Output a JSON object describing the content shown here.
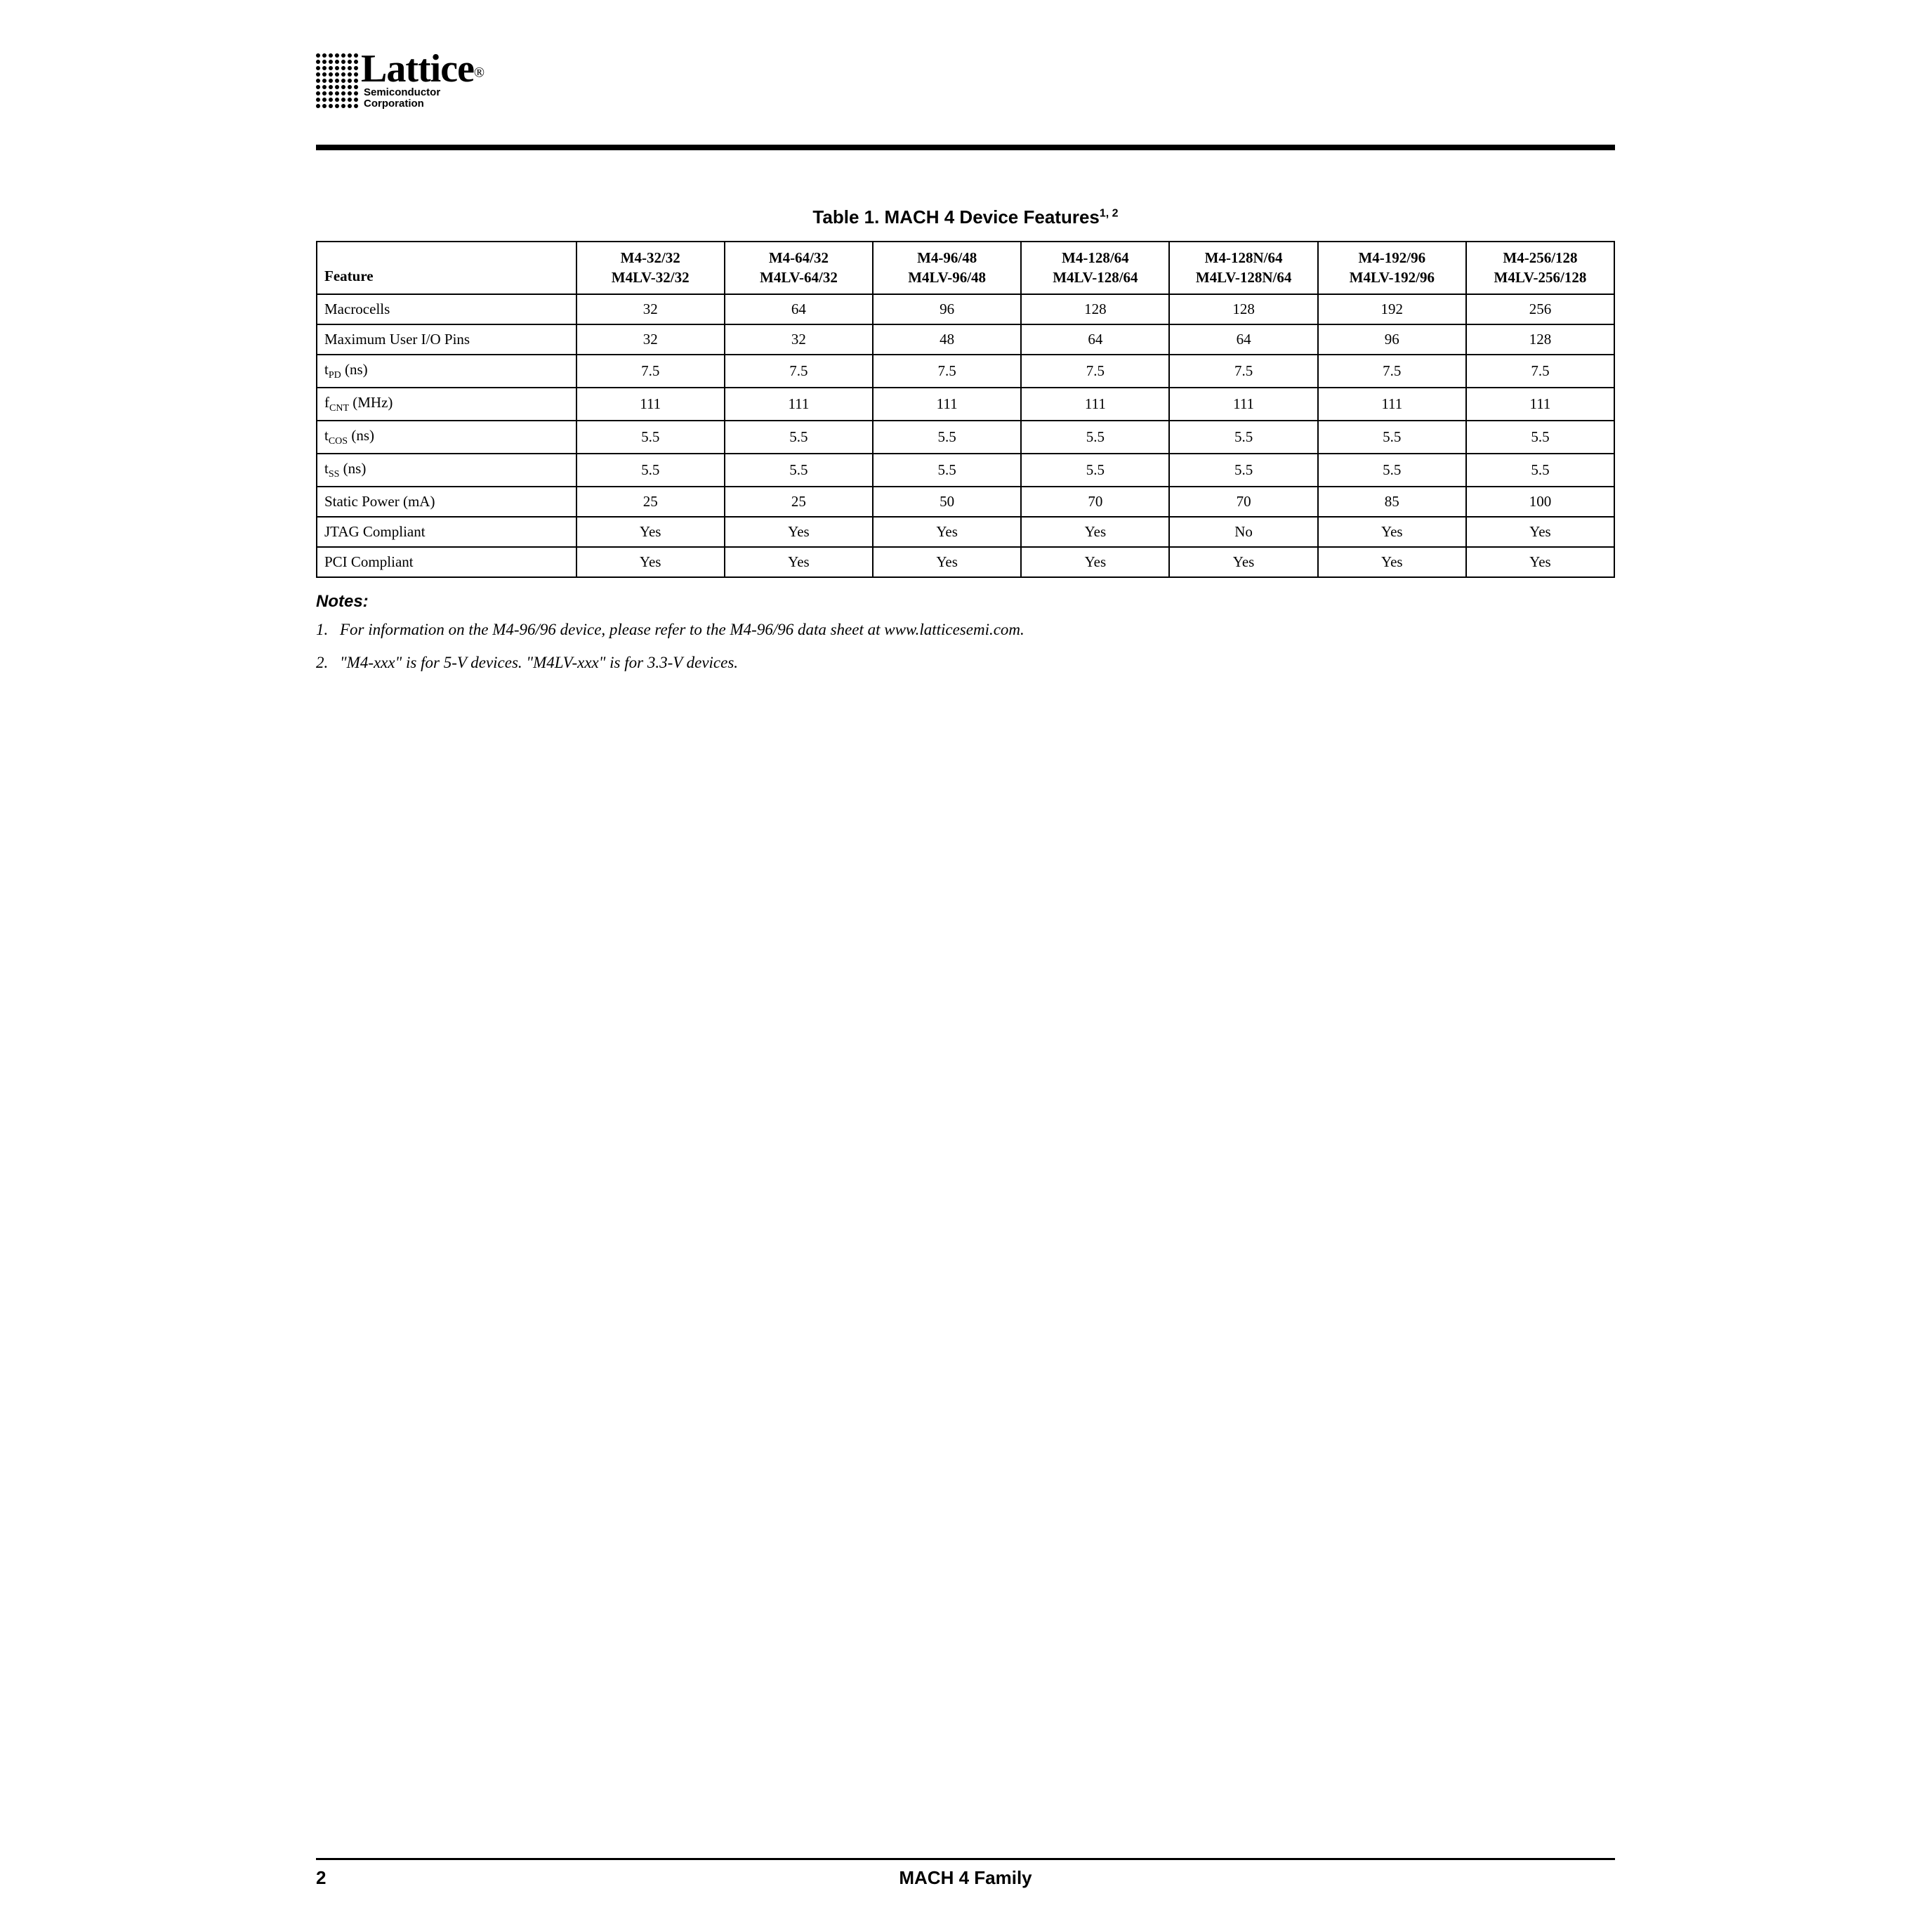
{
  "logo": {
    "word": "Lattice",
    "reg": "®",
    "sub_line1": "Semiconductor",
    "sub_line2": "Corporation"
  },
  "table": {
    "title_prefix": "Table 1. MACH 4 Device Features",
    "title_sup": "1, 2",
    "feature_head": "Feature",
    "columns": [
      {
        "top": "M4-32/32",
        "bottom": "M4LV-32/32"
      },
      {
        "top": "M4-64/32",
        "bottom": "M4LV-64/32"
      },
      {
        "top": "M4-96/48",
        "bottom": "M4LV-96/48"
      },
      {
        "top": "M4-128/64",
        "bottom": "M4LV-128/64"
      },
      {
        "top": "M4-128N/64",
        "bottom": "M4LV-128N/64"
      },
      {
        "top": "M4-192/96",
        "bottom": "M4LV-192/96"
      },
      {
        "top": "M4-256/128",
        "bottom": "M4LV-256/128"
      }
    ],
    "rows": [
      {
        "name_html": "Macrocells",
        "cells": [
          "32",
          "64",
          "96",
          "128",
          "128",
          "192",
          "256"
        ]
      },
      {
        "name_html": "Maximum User I/O Pins",
        "cells": [
          "32",
          "32",
          "48",
          "64",
          "64",
          "96",
          "128"
        ]
      },
      {
        "name_html": "t<span class=\"sub\">PD</span> (ns)",
        "cells": [
          "7.5",
          "7.5",
          "7.5",
          "7.5",
          "7.5",
          "7.5",
          "7.5"
        ]
      },
      {
        "name_html": "f<span class=\"sub\">CNT</span> (MHz)",
        "cells": [
          "111",
          "111",
          "111",
          "111",
          "111",
          "111",
          "111"
        ]
      },
      {
        "name_html": "t<span class=\"sub\">COS</span> (ns)",
        "cells": [
          "5.5",
          "5.5",
          "5.5",
          "5.5",
          "5.5",
          "5.5",
          "5.5"
        ]
      },
      {
        "name_html": "t<span class=\"sub\">SS</span> (ns)",
        "cells": [
          "5.5",
          "5.5",
          "5.5",
          "5.5",
          "5.5",
          "5.5",
          "5.5"
        ]
      },
      {
        "name_html": "Static Power (mA)",
        "cells": [
          "25",
          "25",
          "50",
          "70",
          "70",
          "85",
          "100"
        ]
      },
      {
        "name_html": "JTAG Compliant",
        "cells": [
          "Yes",
          "Yes",
          "Yes",
          "Yes",
          "No",
          "Yes",
          "Yes"
        ]
      },
      {
        "name_html": "PCI Compliant",
        "cells": [
          "Yes",
          "Yes",
          "Yes",
          "Yes",
          "Yes",
          "Yes",
          "Yes"
        ]
      }
    ]
  },
  "notes": {
    "head": "Notes:",
    "items": [
      {
        "num": "1.",
        "text": "For information on the M4-96/96 device, please refer to the M4-96/96 data sheet at www.latticesemi.com."
      },
      {
        "num": "2.",
        "text": "\"M4-xxx\" is for 5-V devices. \"M4LV-xxx\" is for 3.3-V devices."
      }
    ]
  },
  "footer": {
    "page": "2",
    "title": "MACH 4 Family"
  },
  "style": {
    "col_widths_pct": [
      20,
      11.43,
      11.43,
      11.43,
      11.43,
      11.43,
      11.43,
      11.43
    ]
  }
}
